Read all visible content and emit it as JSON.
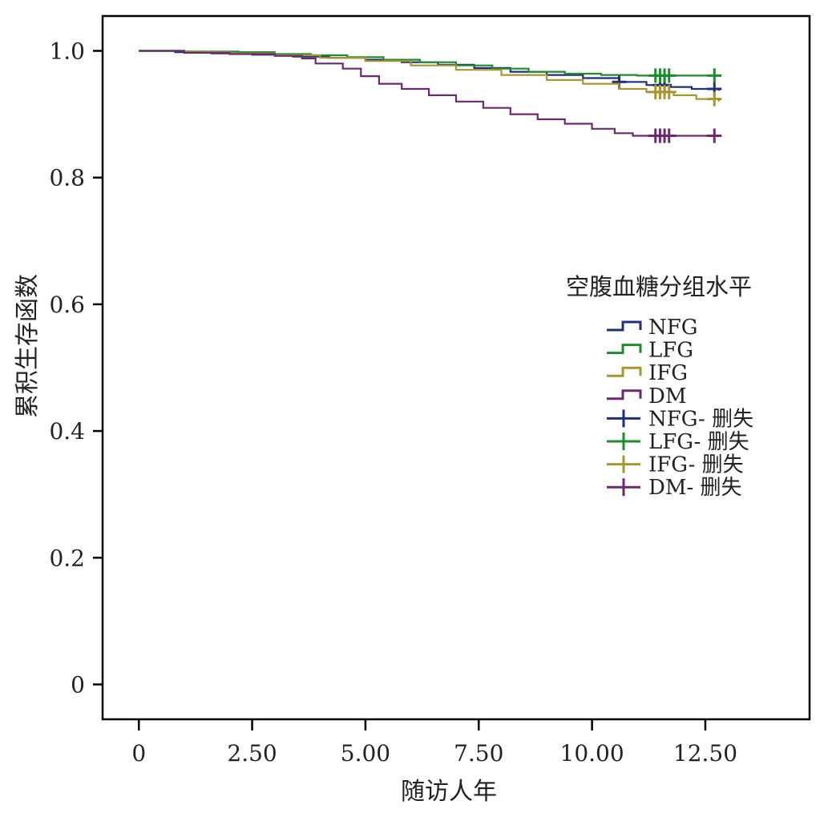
{
  "chart_data": {
    "type": "line",
    "subtype": "kaplan-meier-step",
    "xlabel": "随访人年",
    "ylabel": "累积生存函数",
    "xlim": [
      -0.8,
      14.8
    ],
    "ylim": [
      -0.055,
      1.055
    ],
    "x_ticks": [
      0,
      2.5,
      5.0,
      7.5,
      10.0,
      12.5
    ],
    "x_tick_labels": [
      "0",
      "2.50",
      "5.00",
      "7.50",
      "10.00",
      "12.50"
    ],
    "y_ticks": [
      0,
      0.2,
      0.4,
      0.6,
      0.8,
      1.0
    ],
    "y_tick_labels": [
      "0",
      "0.2",
      "0.4",
      "0.6",
      "0.8",
      "1.0"
    ],
    "grid": false,
    "legend": {
      "title": "空腹血糖分组水平",
      "position": "right",
      "entries": [
        {
          "label": "NFG",
          "kind": "step",
          "series": 0
        },
        {
          "label": "LFG",
          "kind": "step",
          "series": 1
        },
        {
          "label": "IFG",
          "kind": "step",
          "series": 2
        },
        {
          "label": "DM",
          "kind": "step",
          "series": 3
        },
        {
          "label": "NFG- 删失",
          "kind": "censor",
          "series": 0
        },
        {
          "label": "LFG- 删失",
          "kind": "censor",
          "series": 1
        },
        {
          "label": "IFG- 删失",
          "kind": "censor",
          "series": 2
        },
        {
          "label": "DM- 删失",
          "kind": "censor",
          "series": 3
        }
      ]
    },
    "series": [
      {
        "name": "NFG",
        "color": "#1f2f7a",
        "points": [
          [
            0,
            1.0
          ],
          [
            0.8,
            0.998
          ],
          [
            1.6,
            0.996
          ],
          [
            2.5,
            0.994
          ],
          [
            3.4,
            0.991
          ],
          [
            4.2,
            0.989
          ],
          [
            5.0,
            0.986
          ],
          [
            5.8,
            0.982
          ],
          [
            6.6,
            0.978
          ],
          [
            7.4,
            0.973
          ],
          [
            8.2,
            0.967
          ],
          [
            9.0,
            0.962
          ],
          [
            9.8,
            0.957
          ],
          [
            10.6,
            0.951
          ],
          [
            11.2,
            0.946
          ],
          [
            11.7,
            0.943
          ],
          [
            12.2,
            0.94
          ],
          [
            12.8,
            0.937
          ]
        ],
        "censor_x": [
          10.6,
          11.5,
          11.6,
          12.7
        ]
      },
      {
        "name": "LFG",
        "color": "#1f8a2e",
        "points": [
          [
            0,
            1.0
          ],
          [
            1.0,
            0.999
          ],
          [
            2.2,
            0.998
          ],
          [
            3.0,
            0.995
          ],
          [
            3.8,
            0.993
          ],
          [
            4.6,
            0.99
          ],
          [
            5.4,
            0.986
          ],
          [
            6.2,
            0.982
          ],
          [
            7.0,
            0.977
          ],
          [
            7.8,
            0.972
          ],
          [
            8.6,
            0.967
          ],
          [
            9.4,
            0.964
          ],
          [
            10.2,
            0.962
          ],
          [
            11.0,
            0.961
          ],
          [
            12.8,
            0.961
          ]
        ],
        "censor_x": [
          11.4,
          11.5,
          11.6,
          11.7,
          12.7
        ]
      },
      {
        "name": "IFG",
        "color": "#a89530",
        "points": [
          [
            0,
            1.0
          ],
          [
            1.0,
            0.998
          ],
          [
            2.0,
            0.996
          ],
          [
            3.0,
            0.993
          ],
          [
            4.0,
            0.989
          ],
          [
            5.0,
            0.984
          ],
          [
            6.0,
            0.977
          ],
          [
            7.0,
            0.97
          ],
          [
            8.0,
            0.962
          ],
          [
            9.0,
            0.954
          ],
          [
            9.8,
            0.948
          ],
          [
            10.6,
            0.94
          ],
          [
            11.2,
            0.935
          ],
          [
            11.8,
            0.93
          ],
          [
            12.3,
            0.924
          ],
          [
            12.8,
            0.92
          ]
        ],
        "censor_x": [
          11.4,
          11.5,
          11.6,
          11.7,
          12.7
        ]
      },
      {
        "name": "DM",
        "color": "#6a2a6e",
        "points": [
          [
            0,
            1.0
          ],
          [
            1.0,
            0.997
          ],
          [
            2.0,
            0.995
          ],
          [
            3.0,
            0.992
          ],
          [
            3.6,
            0.988
          ],
          [
            3.9,
            0.98
          ],
          [
            4.5,
            0.972
          ],
          [
            4.9,
            0.96
          ],
          [
            5.3,
            0.948
          ],
          [
            5.8,
            0.94
          ],
          [
            6.4,
            0.93
          ],
          [
            7.0,
            0.92
          ],
          [
            7.6,
            0.91
          ],
          [
            8.2,
            0.9
          ],
          [
            8.8,
            0.892
          ],
          [
            9.4,
            0.885
          ],
          [
            10.0,
            0.877
          ],
          [
            10.5,
            0.87
          ],
          [
            10.9,
            0.866
          ],
          [
            11.4,
            0.866
          ],
          [
            12.8,
            0.866
          ]
        ],
        "censor_x": [
          11.4,
          11.5,
          11.6,
          11.7,
          12.7
        ]
      }
    ]
  }
}
